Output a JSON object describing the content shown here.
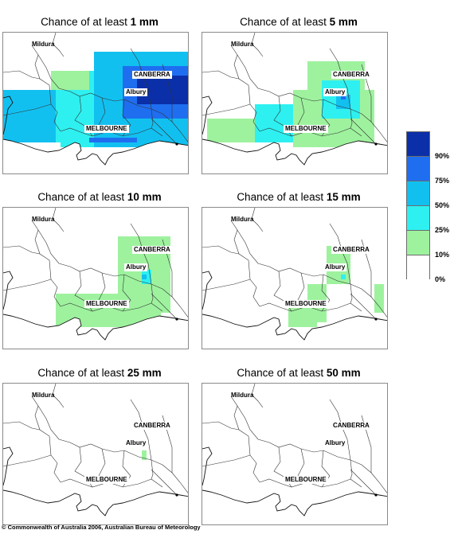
{
  "panels": [
    {
      "prefix": "Chance of at least ",
      "amount": "1 mm",
      "level": 1
    },
    {
      "prefix": "Chance of at least ",
      "amount": "5 mm",
      "level": 2
    },
    {
      "prefix": "Chance of at least ",
      "amount": "10 mm",
      "level": 3
    },
    {
      "prefix": "Chance of at least ",
      "amount": "15 mm",
      "level": 4
    },
    {
      "prefix": "Chance of at least ",
      "amount": "25 mm",
      "level": 5
    },
    {
      "prefix": "Chance of at least ",
      "amount": "50 mm",
      "level": 6
    }
  ],
  "labels": {
    "mildura": "Mildura",
    "canberra": "CANBERRA",
    "albury": "Albury",
    "melbourne": "MELBOURNE"
  },
  "legend": {
    "items": [
      {
        "label": "90%",
        "color": "#0a2fa8"
      },
      {
        "label": "75%",
        "color": "#1f6ef0"
      },
      {
        "label": "50%",
        "color": "#12c0f0"
      },
      {
        "label": "25%",
        "color": "#2ef0f0"
      },
      {
        "label": "10%",
        "color": "#9ef29e"
      },
      {
        "label": "0%",
        "color": "#ffffff"
      }
    ]
  },
  "copyright": "© Commonwealth of Australia 2006, Australian Bureau of Meteorology"
}
